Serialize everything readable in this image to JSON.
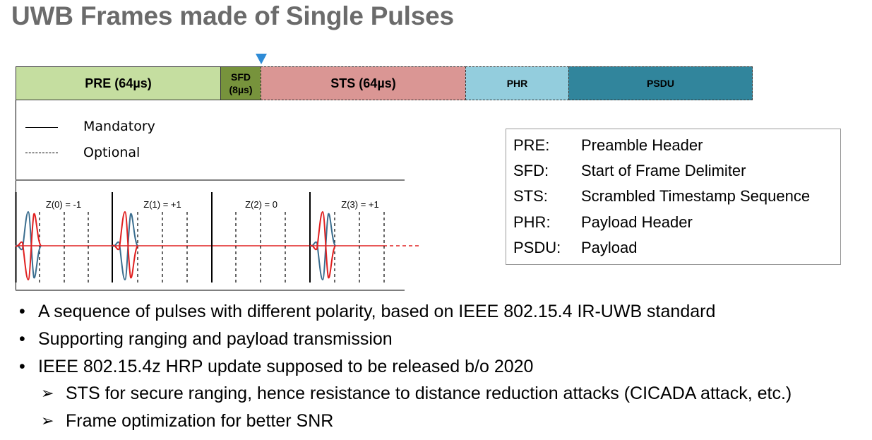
{
  "title": "UWB Frames made of Single Pulses",
  "frame": {
    "pre": "PRE (64µs)",
    "sfd_line1": "SFD",
    "sfd_line2": "(8µs)",
    "sts": "STS (64µs)",
    "phr": "PHR",
    "psdu": "PSDU"
  },
  "legend": {
    "mandatory": "Mandatory",
    "optional": "Optional"
  },
  "pulses": {
    "labels": [
      "Z(0) = -1",
      "Z(1) = +1",
      "Z(2) = 0",
      "Z(3) = +1"
    ]
  },
  "definitions": [
    {
      "abbr": "PRE:",
      "full": "Preamble Header"
    },
    {
      "abbr": "SFD:",
      "full": "Start of Frame Delimiter"
    },
    {
      "abbr": "STS:",
      "full": "Scrambled Timestamp Sequence"
    },
    {
      "abbr": "PHR:",
      "full": "Payload Header"
    },
    {
      "abbr": "PSDU:",
      "full": "Payload"
    }
  ],
  "bullets": [
    "A sequence of pulses with different polarity, based on IEEE 802.15.4 IR-UWB standard",
    "Supporting ranging and payload transmission",
    "IEEE 802.15.4z HRP update supposed to be released b/o 2020"
  ],
  "sub_bullets": [
    "STS for secure ranging, hence resistance to distance reduction attacks (CICADA attack, etc.)",
    "Frame optimization for better SNR"
  ],
  "colors": {
    "title": "#6b6b6b",
    "pre": "#c5dea0",
    "sfd": "#77933c",
    "sts": "#da9694",
    "phr": "#93cddd",
    "psdu": "#31859c",
    "marker": "#2e8bd6",
    "pulse_blue": "#3b6e8f",
    "pulse_red": "#e02020"
  }
}
